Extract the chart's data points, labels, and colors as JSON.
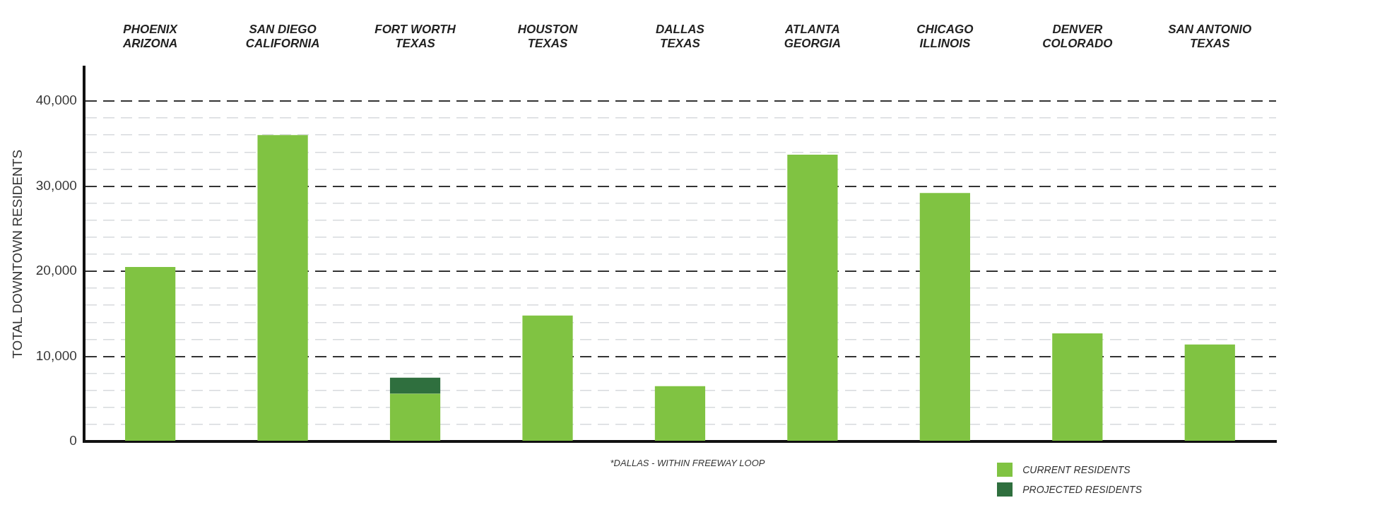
{
  "chart_data": {
    "type": "bar",
    "ylabel": "TOTAL DOWNTOWN RESIDENTS",
    "categories": [
      "PHOENIX\nARIZONA",
      "SAN DIEGO\nCALIFORNIA",
      "FORT WORTH\nTEXAS",
      "HOUSTON\nTEXAS",
      "DALLAS\nTEXAS",
      "ATLANTA\nGEORGIA",
      "CHICAGO\nILLINOIS",
      "DENVER\nCOLORADO",
      "SAN ANTONIO\nTEXAS"
    ],
    "stacked": true,
    "series": [
      {
        "name": "CURRENT RESIDENTS",
        "color": "#80c342",
        "values": [
          20500,
          36000,
          5600,
          14800,
          6500,
          33700,
          29200,
          12700,
          11400
        ]
      },
      {
        "name": "PROJECTED RESIDENTS",
        "color": "#2f6f3e",
        "values": [
          null,
          null,
          1900,
          null,
          null,
          null,
          null,
          null,
          null
        ]
      }
    ],
    "ylim": [
      0,
      44000
    ],
    "yticks": [
      0,
      {
        "value": 2000,
        "label": null
      },
      {
        "value": 4000,
        "label": null
      },
      {
        "value": 6000,
        "label": null
      },
      {
        "value": 8000,
        "label": null
      },
      {
        "value": 10000,
        "label": "10,000"
      },
      {
        "value": 12000,
        "label": null
      },
      {
        "value": 14000,
        "label": null
      },
      {
        "value": 16000,
        "label": null
      },
      {
        "value": 18000,
        "label": null
      },
      {
        "value": 20000,
        "label": "20,000"
      },
      {
        "value": 22000,
        "label": null
      },
      {
        "value": 24000,
        "label": null
      },
      {
        "value": 26000,
        "label": null
      },
      {
        "value": 28000,
        "label": null
      },
      {
        "value": 30000,
        "label": "30,000"
      },
      {
        "value": 32000,
        "label": null
      },
      {
        "value": 34000,
        "label": null
      },
      {
        "value": 36000,
        "label": null
      },
      {
        "value": 38000,
        "label": null
      },
      {
        "value": 40000,
        "label": "40,000"
      }
    ],
    "grid": "y",
    "legend": "bottom right",
    "annotations": [
      "*DALLAS - WITHIN FREEWAY LOOP"
    ]
  }
}
